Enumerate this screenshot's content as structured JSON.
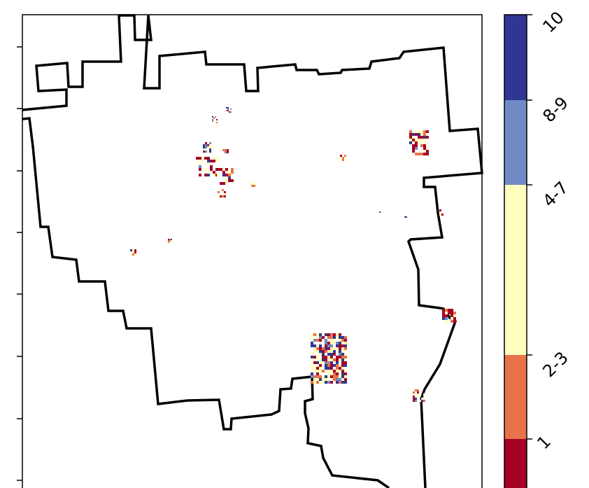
{
  "map": {
    "boundary_color": "#000000",
    "background": "#ffffff",
    "noise_seed": 7
  },
  "legend": {
    "type": "discrete-colorbar",
    "orientation": "vertical",
    "placement": "right",
    "classes": [
      {
        "label": "1",
        "color": "#a50026"
      },
      {
        "label": "2-3",
        "color": "#e8734a"
      },
      {
        "label": "4-7",
        "color": "#ffffbf"
      },
      {
        "label": "8-9",
        "color": "#6f8ac4"
      },
      {
        "label": "10",
        "color": "#313695"
      }
    ]
  }
}
